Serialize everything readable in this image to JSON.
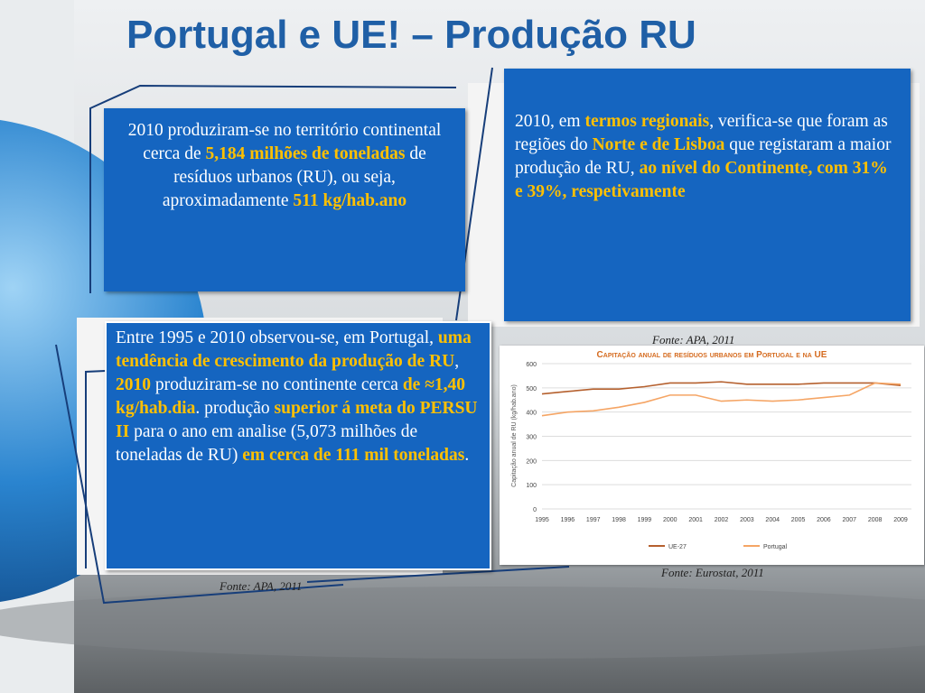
{
  "title": "Portugal e UE! – Produção RU",
  "boxes": [
    [
      {
        "text": "2010 produziram-se no território continental cerca de "
      },
      {
        "text": "5,184 milhões de toneladas",
        "highlight": true
      },
      {
        "text": " de resíduos urbanos (RU), ou seja, aproximadamente "
      },
      {
        "text": "511 kg/hab.ano",
        "highlight": true
      }
    ],
    [
      {
        "text": "2010, em "
      },
      {
        "text": "termos regionais",
        "highlight": true
      },
      {
        "text": ", verifica-se que foram as regiões do "
      },
      {
        "text": "Norte e de Lisboa",
        "highlight": true
      },
      {
        "text": " que registaram a maior produção de RU, "
      },
      {
        "text": "ao nível do Continente, com 31% e 39%, respetivamente",
        "highlight": true
      }
    ],
    [
      {
        "text": "Entre 1995 e 2010 observou-se, em Portugal, "
      },
      {
        "text": "uma tendência de crescimento da produção de RU",
        "highlight": true
      },
      {
        "text": ", "
      },
      {
        "text": "2010",
        "highlight": true
      },
      {
        "text": " produziram-se no continente cerca "
      },
      {
        "text": "de  ≈1,40 kg/hab.dia",
        "highlight": true
      },
      {
        "text": ". produção  "
      },
      {
        "text": "superior á meta do PERSU II",
        "highlight": true
      },
      {
        "text": " para o ano em analise (5,073 milhões de toneladas de RU) "
      },
      {
        "text": "em cerca de 111 mil toneladas",
        "highlight": true
      },
      {
        "text": "."
      }
    ]
  ],
  "sources": [
    "Fonte: APA, 2011",
    "Fonte: Eurostat, 2011",
    "Fonte: APA, 2011"
  ],
  "chart_data": {
    "type": "line",
    "title": "Capitação anual de resíduos urbanos em Portugal e na UE",
    "ylabel": "Capitação anual de RU (kg/hab.ano)",
    "x": [
      1995,
      1996,
      1997,
      1998,
      1999,
      2000,
      2001,
      2002,
      2003,
      2004,
      2005,
      2006,
      2007,
      2008,
      2009
    ],
    "series": [
      {
        "name": "UE-27",
        "color": "#b5602e",
        "values": [
          475,
          485,
          495,
          495,
          505,
          520,
          520,
          525,
          515,
          515,
          515,
          520,
          520,
          520,
          510
        ]
      },
      {
        "name": "Portugal",
        "color": "#f5a565",
        "values": [
          385,
          400,
          405,
          420,
          440,
          470,
          470,
          445,
          450,
          445,
          450,
          460,
          470,
          520,
          515
        ]
      }
    ],
    "xlim": [
      1995,
      2009
    ],
    "ylim": [
      0,
      600
    ],
    "yticks": [
      0,
      100,
      200,
      300,
      400,
      500,
      600
    ],
    "grid": true
  }
}
